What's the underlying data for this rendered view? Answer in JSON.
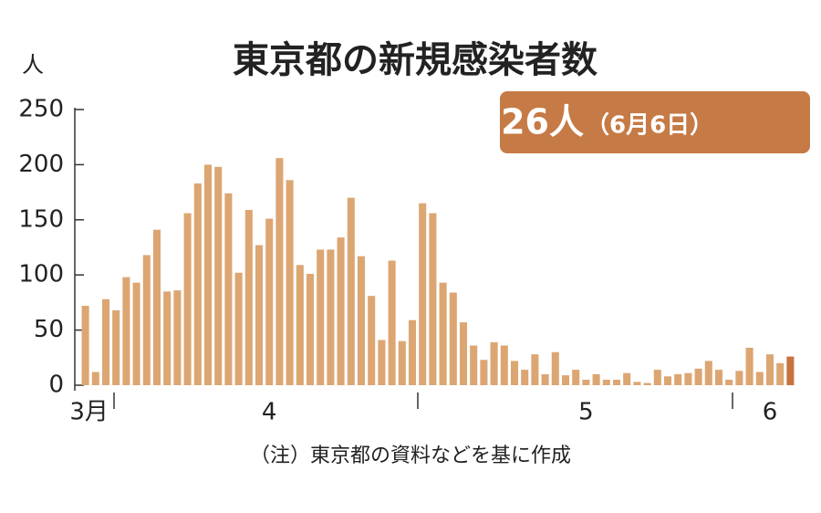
{
  "chart_data": {
    "type": "bar",
    "title": "東京都の新規感染者数",
    "y_unit": "人",
    "annotation_value": "26人",
    "annotation_date": "（6月6日）",
    "note": "（注）東京都の資料などを基に作成",
    "categories": [
      "3月",
      null,
      null,
      null,
      null,
      null,
      null,
      null,
      null,
      null,
      null,
      null,
      null,
      null,
      null,
      null,
      null,
      null,
      "4",
      null,
      null,
      null,
      null,
      null,
      null,
      null,
      null,
      null,
      null,
      null,
      null,
      null,
      null,
      null,
      null,
      null,
      null,
      null,
      null,
      null,
      null,
      null,
      null,
      null,
      null,
      null,
      null,
      null,
      null,
      "5",
      null,
      null,
      null,
      null,
      null,
      null,
      null,
      null,
      null,
      null,
      null,
      null,
      null,
      null,
      null,
      null,
      null,
      "6",
      null,
      null
    ],
    "values": [
      72,
      12,
      78,
      68,
      98,
      93,
      118,
      141,
      85,
      86,
      156,
      183,
      200,
      198,
      174,
      102,
      159,
      127,
      151,
      206,
      186,
      109,
      101,
      123,
      123,
      134,
      170,
      117,
      81,
      41,
      113,
      40,
      59,
      165,
      156,
      93,
      84,
      57,
      36,
      23,
      39,
      36,
      22,
      14,
      28,
      10,
      30,
      9,
      14,
      5,
      10,
      5,
      5,
      11,
      3,
      2,
      14,
      8,
      10,
      11,
      15,
      22,
      14,
      5,
      13,
      34,
      12,
      28,
      20,
      26
    ],
    "color": "#dca673",
    "latest_color": "#c8733f",
    "ylim": [
      0,
      250
    ],
    "yticks": [
      0,
      50,
      100,
      150,
      200,
      250
    ]
  }
}
